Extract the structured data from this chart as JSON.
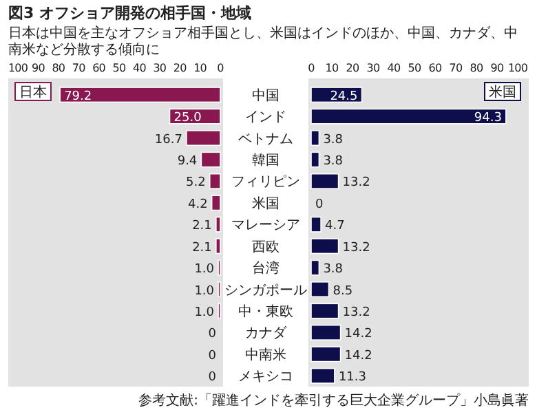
{
  "chart_data": [
    {
      "type": "bar",
      "orientation": "horizontal",
      "title": "図3 オフショア開発の相手国・地域",
      "subtitle": "日本は中国を主なオフショア相手国とし、米国はインドのほか、中国、カナダ、中南米など分散する傾向に",
      "categories": [
        "中国",
        "インド",
        "ベトナム",
        "韓国",
        "フィリピン",
        "米国",
        "マレーシア",
        "西欧",
        "台湾",
        "シンガポール",
        "中・東欧",
        "カナダ",
        "中南米",
        "メキシコ"
      ],
      "series": [
        {
          "name": "日本",
          "color": "#8a1850",
          "values": [
            79.2,
            25.0,
            16.7,
            9.4,
            5.2,
            4.2,
            2.1,
            2.1,
            1.0,
            1.0,
            1.0,
            0,
            0,
            0
          ],
          "value_labels": [
            "79.2",
            "25.0",
            "16.7",
            "9.4",
            "5.2",
            "4.2",
            "2.1",
            "2.1",
            "1.0",
            "1.0",
            "1.0",
            "0",
            "0",
            "0"
          ]
        }
      ],
      "xlim": [
        100,
        0
      ],
      "xticks": [
        100,
        90,
        80,
        70,
        60,
        50,
        40,
        30,
        20,
        10,
        0
      ],
      "legend": "top left"
    },
    {
      "type": "bar",
      "orientation": "horizontal",
      "annotations": [
        "参考文献:「躍進インドを牽引する巨大企業グループ」小島眞著"
      ],
      "series": [
        {
          "name": "米国",
          "color": "#0e0e4c",
          "values": [
            24.5,
            94.3,
            3.8,
            3.8,
            13.2,
            0,
            4.7,
            13.2,
            3.8,
            8.5,
            13.2,
            14.2,
            14.2,
            11.3
          ]
        }
      ],
      "xlim": [
        0,
        100
      ],
      "xticks": [
        0,
        10,
        20,
        30,
        40,
        50,
        60,
        70,
        80,
        90,
        100
      ],
      "legend": "top right",
      "data_labels": true
    }
  ]
}
